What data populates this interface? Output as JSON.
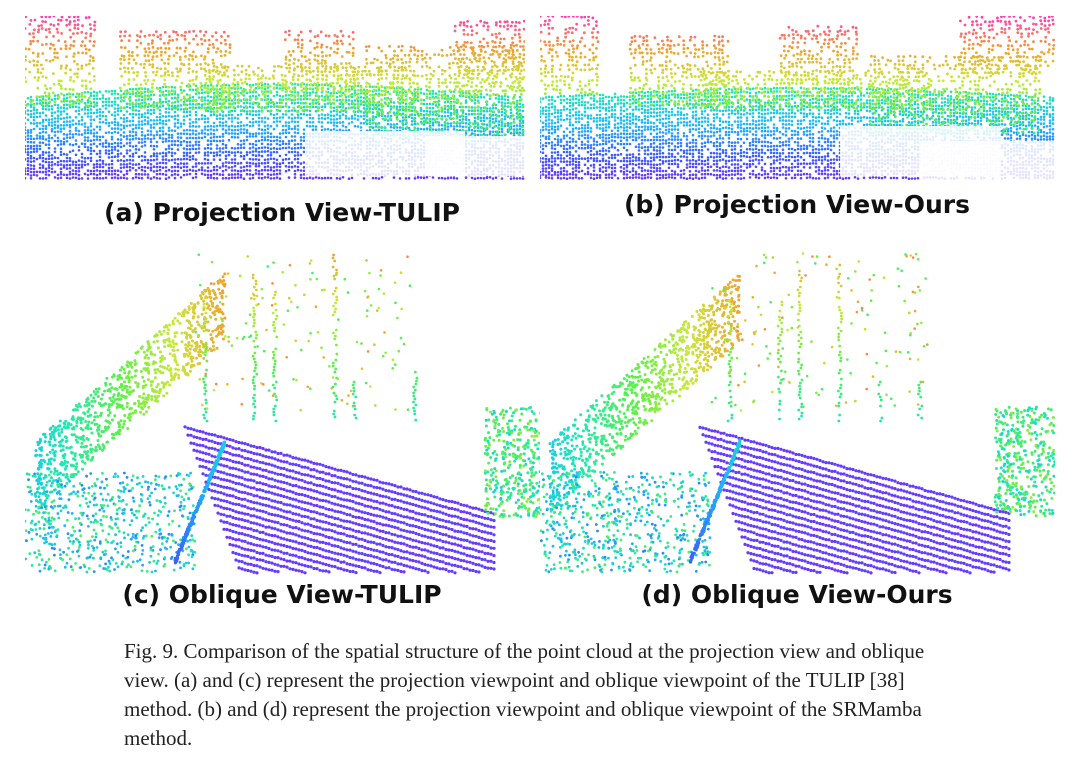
{
  "figure": {
    "panels": [
      {
        "label": "(a) Projection View-TULIP"
      },
      {
        "label": "(b) Projection View-Ours"
      },
      {
        "label": "(c) Oblique View-TULIP"
      },
      {
        "label": "(d) Oblique View-Ours"
      }
    ],
    "caption": "Fig. 9. Comparison of the spatial structure of the point cloud at the projection view and oblique view. (a) and (c) represent the projection viewpoint and oblique viewpoint of the TULIP [38] method. (b) and (d) represent the projection viewpoint and oblique viewpoint of the SRMamba method.",
    "colormap": [
      "#7b2bff",
      "#3b5bff",
      "#1fb7ff",
      "#1fe8b0",
      "#5cf04a",
      "#c8e83a",
      "#f0a030",
      "#ff3fae"
    ]
  }
}
